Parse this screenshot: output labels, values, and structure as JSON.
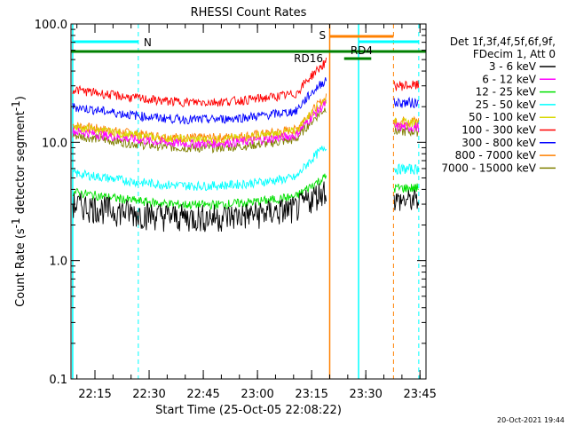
{
  "chart_data": {
    "type": "line",
    "title": "RHESSI Count Rates",
    "xlabel": "Start Time (25-Oct-05 22:08:22)",
    "ylabel": "Count Rate (s",
    "ylabel_sup": "-1",
    "ylabel_mid": " detector segment",
    "ylabel_sup2": "-1",
    "ylabel_end": ")",
    "y_scale": "log",
    "ylim": [
      0.1,
      100
    ],
    "xlim": [
      "22:08:22",
      "23:46:40"
    ],
    "x_ticks": [
      "22:15",
      "22:30",
      "22:45",
      "23:00",
      "23:15",
      "23:30",
      "23:45"
    ],
    "y_ticks": [
      "0.1",
      "1.0",
      "10.0",
      "100.0"
    ],
    "legend_header": [
      "Det 1f,3f,4f,5f,6f,9f,",
      "FDecim 1, Att 0"
    ],
    "legend_position": "right",
    "series": [
      {
        "name": "3 - 6 keV",
        "color": "#000000",
        "level": 3.0
      },
      {
        "name": "6 - 12 keV",
        "color": "#ff00ff",
        "level": 12.5
      },
      {
        "name": "12 - 25 keV",
        "color": "#00e000",
        "level": 3.8
      },
      {
        "name": "25 - 50 keV",
        "color": "#00ffff",
        "level": 5.5
      },
      {
        "name": "50 - 100 keV",
        "color": "#d8d800",
        "level": 13.5
      },
      {
        "name": "100 - 300 keV",
        "color": "#ff0000",
        "level": 28.0
      },
      {
        "name": "300 - 800 keV",
        "color": "#0000ff",
        "level": 20.0
      },
      {
        "name": "800 - 7000 keV",
        "color": "#ff8000",
        "level": 14.0
      },
      {
        "name": "7000 - 15000 keV",
        "color": "#808000",
        "level": 11.5
      }
    ],
    "annotations": [
      {
        "label": "N",
        "color": "#00ffff"
      },
      {
        "label": "S",
        "color": "#ff8000"
      },
      {
        "label": "RD4",
        "color": "#008000"
      },
      {
        "label": "RD16",
        "color": "#008000"
      }
    ],
    "timestamp": "20-Oct-2021 19:44"
  }
}
